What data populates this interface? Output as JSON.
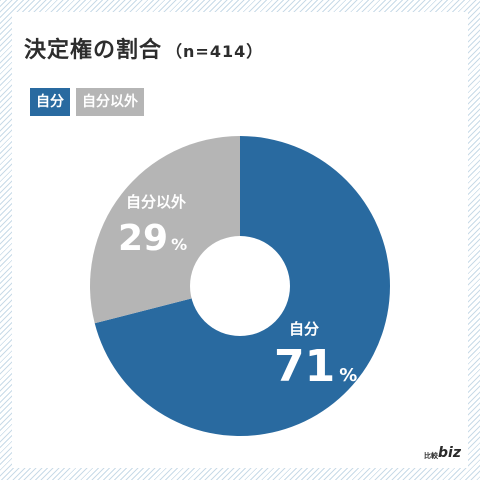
{
  "title": "決定権の割合",
  "n_label": "（n=414）",
  "percent_unit": "%",
  "logo": {
    "small": "比較",
    "main": "biz"
  },
  "chart_data": {
    "type": "pie",
    "donut": true,
    "categories": [
      "自分",
      "自分以外"
    ],
    "values": [
      71,
      29
    ],
    "colors": [
      "#296aa0",
      "#b5b5b5"
    ],
    "legend": "top-left"
  }
}
